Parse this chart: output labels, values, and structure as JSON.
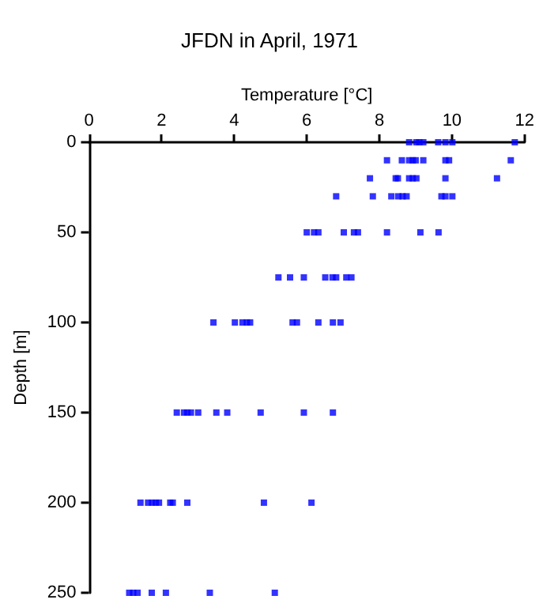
{
  "chart_data": {
    "type": "scatter",
    "title": "JFDN in April, 1971",
    "xlabel": "Temperature [°C]",
    "ylabel": "Depth [m]",
    "x": [
      8.82,
      9.02,
      9.1,
      9.21,
      9.62,
      9.82,
      10.01,
      11.73,
      8.21,
      8.62,
      8.82,
      8.92,
      9.0,
      9.21,
      9.82,
      9.92,
      11.62,
      7.74,
      8.45,
      8.51,
      8.82,
      8.92,
      9.02,
      9.82,
      11.24,
      6.81,
      7.82,
      8.33,
      8.52,
      8.64,
      8.75,
      9.71,
      9.82,
      10.01,
      6.0,
      6.2,
      6.32,
      7.02,
      7.3,
      7.41,
      8.21,
      9.13,
      9.63,
      5.22,
      5.54,
      5.92,
      6.51,
      6.71,
      6.81,
      7.09,
      7.23,
      3.43,
      4.02,
      4.23,
      4.35,
      4.44,
      5.61,
      5.73,
      6.32,
      6.72,
      6.93,
      2.42,
      2.62,
      2.71,
      2.81,
      3.01,
      3.51,
      3.81,
      4.73,
      5.92,
      6.72,
      1.42,
      1.63,
      1.74,
      1.84,
      1.93,
      2.24,
      2.31,
      2.71,
      4.82,
      6.13,
      1.11,
      1.22,
      1.34,
      1.73,
      2.12,
      3.33,
      5.12
    ],
    "series": [
      {
        "color": "#0000ff",
        "values": [
          0,
          0,
          0,
          0,
          0,
          0,
          0,
          0,
          10,
          10,
          10,
          10,
          10,
          10,
          10,
          10,
          10,
          20,
          20,
          20,
          20,
          20,
          20,
          20,
          20,
          30,
          30,
          30,
          30,
          30,
          30,
          30,
          30,
          30,
          50,
          50,
          50,
          50,
          50,
          50,
          50,
          50,
          50,
          75,
          75,
          75,
          75,
          75,
          75,
          75,
          75,
          100,
          100,
          100,
          100,
          100,
          100,
          100,
          100,
          100,
          100,
          150,
          150,
          150,
          150,
          150,
          150,
          150,
          150,
          150,
          150,
          200,
          200,
          200,
          200,
          200,
          200,
          200,
          200,
          200,
          200,
          250,
          250,
          250,
          250,
          250,
          250,
          250
        ]
      }
    ],
    "xlim": [
      0,
      12
    ],
    "xticks": [
      0,
      2,
      4,
      6,
      8,
      10,
      12
    ],
    "ylim": [
      250,
      0
    ],
    "yticks": [
      0,
      50,
      100,
      150,
      200,
      250
    ],
    "marker": "square",
    "grid": false
  }
}
